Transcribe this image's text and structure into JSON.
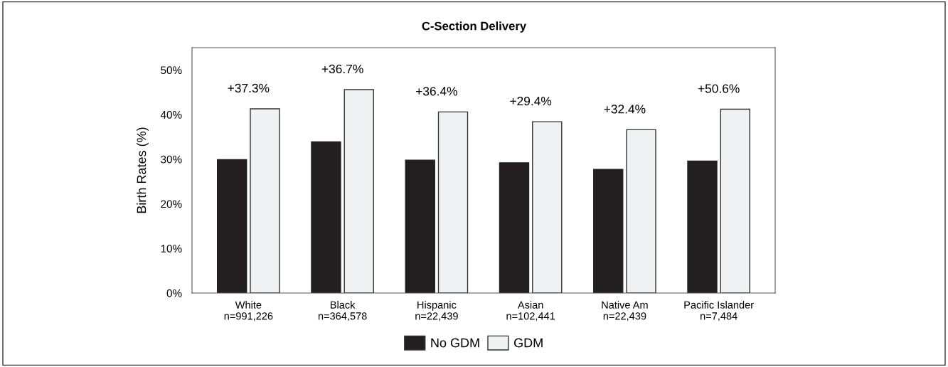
{
  "chart_data": {
    "type": "bar",
    "title": "C-Section Delivery",
    "ylabel": "Birth Rates (%)",
    "categories": [
      "White\nn=991,226",
      "Black\nn=364,578",
      "Hispanic\nn=22,439",
      "Asian\nn=102,441",
      "Native Am\nn=22,439",
      "Pacific Islander\nn=7,484"
    ],
    "series": [
      {
        "name": "No GDM",
        "color": "#231f20",
        "values": [
          29.9,
          33.9,
          29.8,
          29.2,
          27.7,
          29.6
        ]
      },
      {
        "name": "GDM",
        "color": "#f0f1f3",
        "values": [
          41.3,
          45.6,
          40.6,
          38.4,
          36.6,
          41.2
        ]
      }
    ],
    "annotations": [
      {
        "text": "+37.3%",
        "x": "White\nn=991,226",
        "y": 41.3
      },
      {
        "text": "+36.7%",
        "x": "Black\nn=364,578",
        "y": 45.6
      },
      {
        "text": "+36.4%",
        "x": "Hispanic\nn=22,439",
        "y": 40.6
      },
      {
        "text": "+29.4%",
        "x": "Asian\nn=102,441",
        "y": 38.4
      },
      {
        "text": "+32.4%",
        "x": "Native Am\nn=22,439",
        "y": 36.6
      },
      {
        "text": "+50.6%",
        "x": "Pacific Islander\nn=7,484",
        "y": 41.2
      }
    ],
    "ylim": [
      0,
      55
    ],
    "yticks": [
      {
        "value": 0,
        "label": "0%"
      },
      {
        "value": 10,
        "label": "10%"
      },
      {
        "value": 20,
        "label": "20%"
      },
      {
        "value": 30,
        "label": "30%"
      },
      {
        "value": 40,
        "label": "40%"
      },
      {
        "value": 50,
        "label": "50%"
      }
    ],
    "grid": false,
    "legend": "bottom"
  }
}
